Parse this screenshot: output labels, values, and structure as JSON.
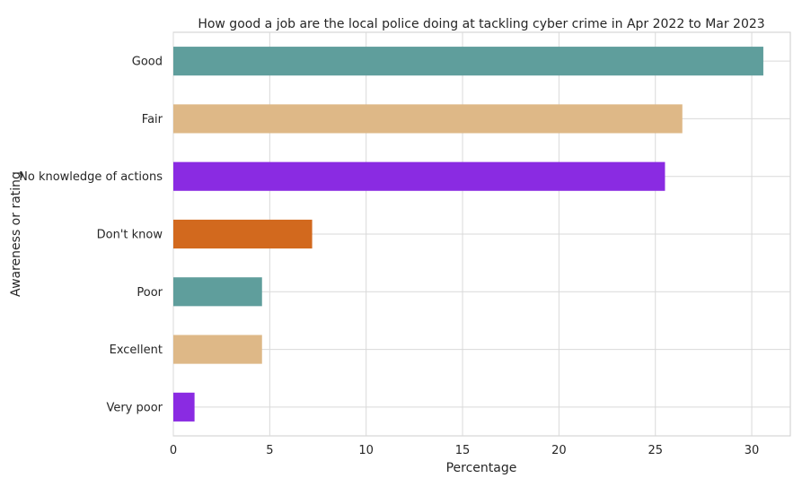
{
  "chart_data": {
    "type": "bar",
    "orientation": "horizontal",
    "title": "How good a job are the local police doing at tackling cyber crime in Apr 2022 to Mar 2023",
    "xlabel": "Percentage",
    "ylabel": "Awareness or rating",
    "xlim": [
      0,
      32
    ],
    "xticks": [
      "0",
      "5",
      "10",
      "15",
      "20",
      "25",
      "30"
    ],
    "grid": true,
    "categories": [
      "Good",
      "Fair",
      "No knowledge of actions",
      "Don't know",
      "Poor",
      "Excellent",
      "Very poor"
    ],
    "values": [
      30.6,
      26.4,
      25.5,
      7.2,
      4.6,
      4.6,
      1.1
    ],
    "colors": [
      "#5f9e9c",
      "#deb887",
      "#8a2be2",
      "#d2691e",
      "#5f9e9c",
      "#deb887",
      "#8a2be2"
    ]
  }
}
